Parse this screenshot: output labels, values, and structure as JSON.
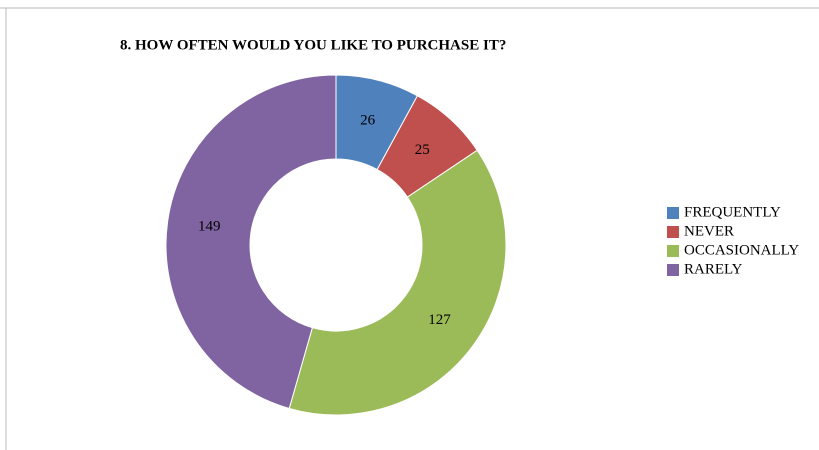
{
  "chart_data": {
    "type": "donut",
    "title": "8. HOW OFTEN WOULD YOU LIKE TO PURCHASE IT?",
    "categories": [
      "FREQUENTLY",
      "NEVER",
      "OCCASIONALLY",
      "RARELY"
    ],
    "values": [
      26,
      25,
      127,
      149
    ],
    "colors": [
      "#4f81bd",
      "#c0504d",
      "#9bbb59",
      "#8064a2"
    ],
    "legend": "right"
  }
}
